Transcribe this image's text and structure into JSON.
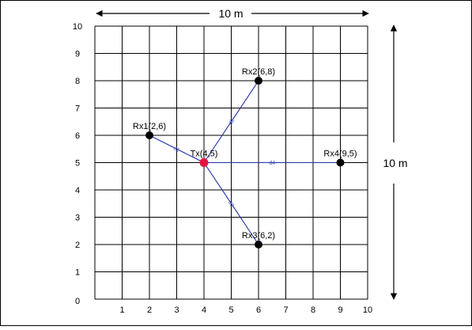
{
  "dimensions": {
    "width_label": "10 m",
    "height_label": "10 m"
  },
  "axis": {
    "x_ticks": [
      "1",
      "2",
      "3",
      "4",
      "5",
      "6",
      "7",
      "8",
      "9",
      "10"
    ],
    "y_ticks": [
      "0",
      "1",
      "2",
      "3",
      "4",
      "5",
      "6",
      "7",
      "8",
      "9",
      "10"
    ],
    "range": [
      0,
      10
    ]
  },
  "transmitter": {
    "label": "Tx(4,5)",
    "x": 4,
    "y": 5,
    "color": "#e0143c"
  },
  "receivers": [
    {
      "label": "Rx1(2,6)",
      "x": 2,
      "y": 6
    },
    {
      "label": "Rx2(6,8)",
      "x": 6,
      "y": 8
    },
    {
      "label": "Rx3(6,2)",
      "x": 6,
      "y": 2
    },
    {
      "label": "Rx4(9,5)",
      "x": 9,
      "y": 5
    }
  ],
  "links": [
    {
      "label": "d1",
      "to": 0
    },
    {
      "label": "d2",
      "to": 1
    },
    {
      "label": "d3",
      "to": 2
    },
    {
      "label": "d4",
      "to": 3
    }
  ],
  "colors": {
    "grid": "#000000",
    "link": "#1f2fa8",
    "receiver": "#000000"
  }
}
